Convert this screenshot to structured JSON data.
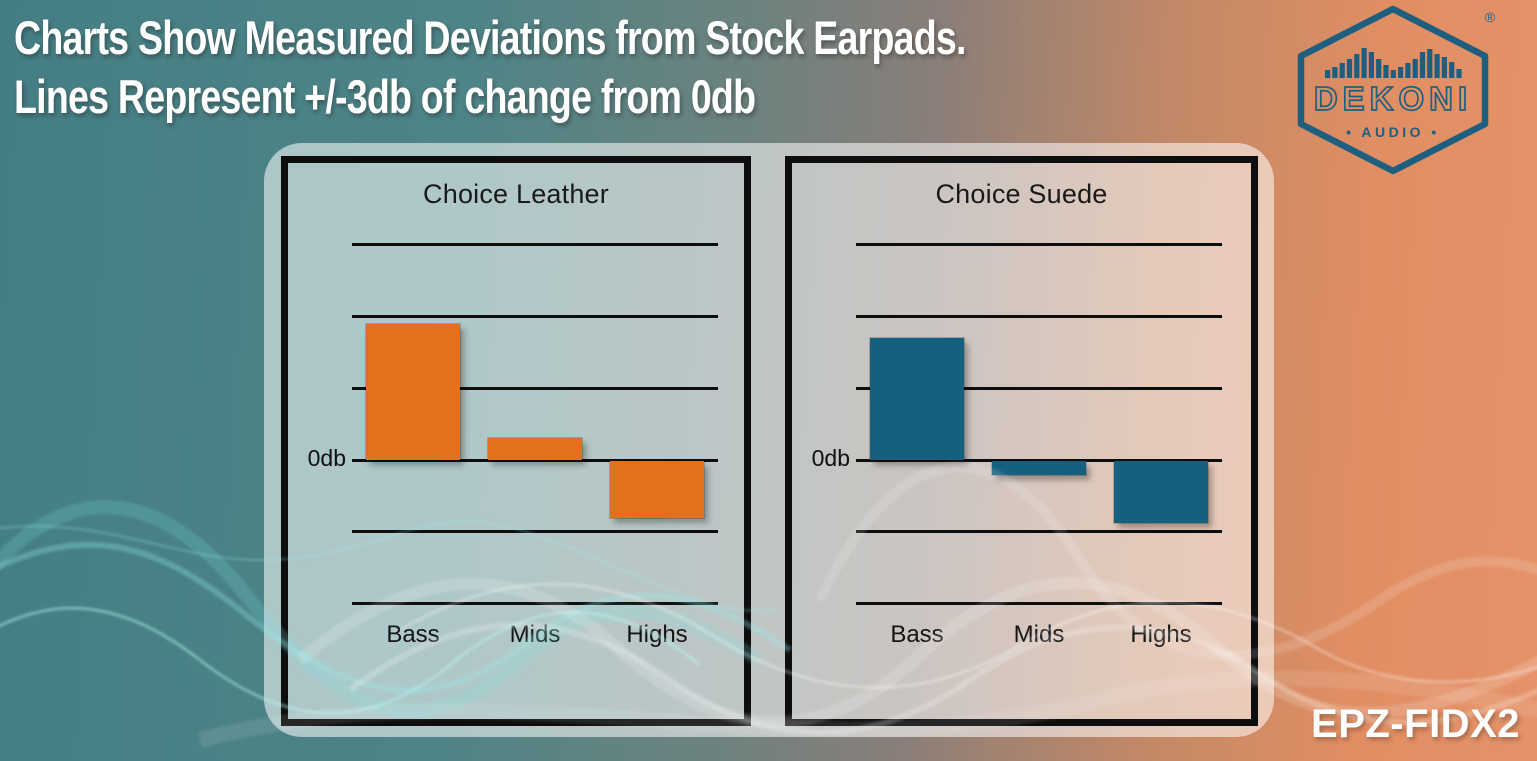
{
  "header": {
    "title_line1": "Charts Show Measured Deviations from Stock Earpads.",
    "title_line2": "Lines Represent +/-3db of change from 0db"
  },
  "logo": {
    "brand": "DEKONI",
    "subtitle": "• AUDIO •",
    "registered_mark": "®",
    "color": "#1e5f80",
    "eq_bar_heights": [
      8,
      11,
      15,
      19,
      24,
      30,
      26,
      19,
      13,
      8,
      11,
      15,
      19,
      26,
      29,
      24,
      21,
      16,
      9
    ]
  },
  "footer": {
    "product_code": "EPZ-FIDX2"
  },
  "chart_data": [
    {
      "type": "bar",
      "title": "Choice Leather",
      "categories": [
        "Bass",
        "Mids",
        "Highs"
      ],
      "values": [
        5.7,
        0.9,
        -2.4
      ],
      "unit": "db",
      "zero_label": "0db",
      "bar_color": "#e2711d",
      "gridlines_db": [
        9,
        6,
        3,
        0,
        -3,
        -6
      ],
      "gridline_step_db": 3,
      "xlabel": "",
      "ylabel": "",
      "legend": "none",
      "note": "bars show deviation from 0db; each gridline = 3db"
    },
    {
      "type": "bar",
      "title": "Choice Suede",
      "categories": [
        "Bass",
        "Mids",
        "Highs"
      ],
      "values": [
        5.1,
        -0.6,
        -2.6
      ],
      "unit": "db",
      "zero_label": "0db",
      "bar_color": "#16607f",
      "gridlines_db": [
        9,
        6,
        3,
        0,
        -3,
        -6
      ],
      "gridline_step_db": 3,
      "xlabel": "",
      "ylabel": "",
      "legend": "none",
      "note": "bars show deviation from 0db; each gridline = 3db"
    }
  ],
  "colors": {
    "bg_teal_dark": "#447e84",
    "bg_teal": "#4e8487",
    "bg_gray": "#8b7e78",
    "bg_orange": "#e18e63",
    "bg_orange_light": "#e59269",
    "logo_blue": "#1e5f80",
    "line_black": "#0e0e0e",
    "title_white": "#ffffff"
  }
}
